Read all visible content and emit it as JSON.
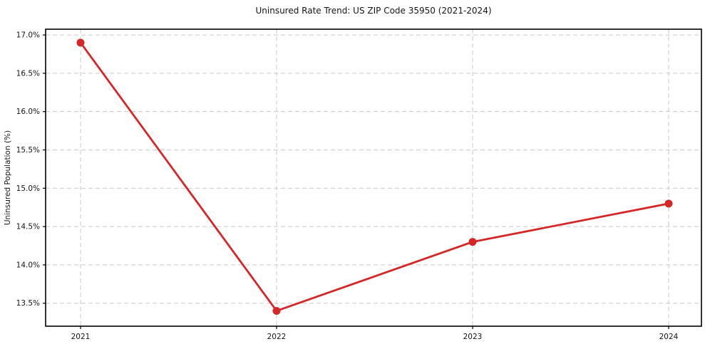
{
  "figure": {
    "background": "#ffffff"
  },
  "chart_data": {
    "type": "line",
    "title": "Uninsured Rate Trend: US ZIP Code 35950 (2021-2024)",
    "xlabel": "",
    "ylabel": "Uninsured Population (%)",
    "categories": [
      "2021",
      "2022",
      "2023",
      "2024"
    ],
    "values": [
      16.9,
      13.4,
      14.3,
      14.8
    ],
    "line_color": "#d62728",
    "marker": "circle",
    "ylim": [
      13.2,
      17.075
    ],
    "y_ticks": [
      17.0,
      16.5,
      16.0,
      15.5,
      15.0,
      14.5,
      14.0,
      13.5
    ],
    "y_tick_suffix": "%",
    "y_tick_decimals": 1,
    "grid": "dashed",
    "grid_color": "#c9c9c9",
    "legend": "none"
  }
}
